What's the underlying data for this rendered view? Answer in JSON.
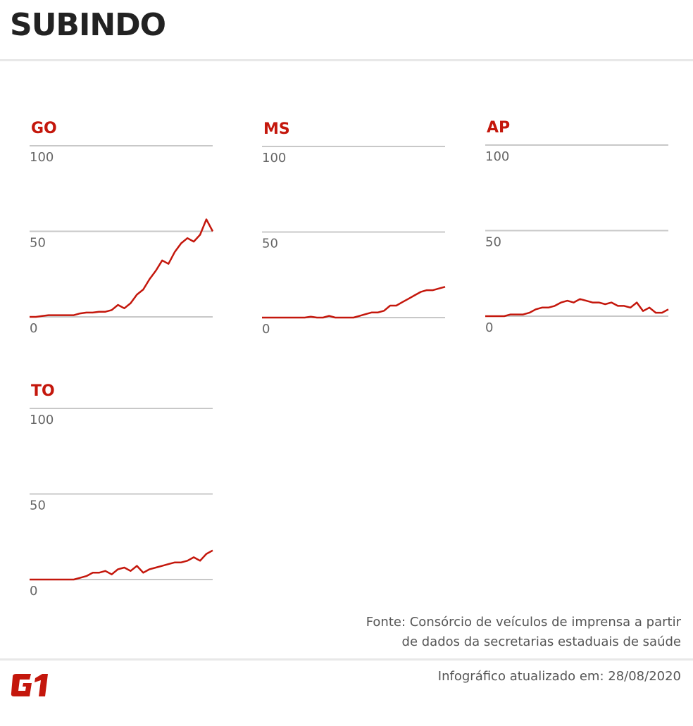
{
  "header": {
    "title": "SUBINDO"
  },
  "colors": {
    "line": "#c4170c",
    "grid": "#c8c8c8",
    "title": "#c4170c"
  },
  "chart_data": [
    {
      "type": "line",
      "title": "GO",
      "ylim": [
        0,
        100
      ],
      "yticks": [
        "100",
        "50",
        "0"
      ],
      "grid": true,
      "values": [
        0,
        0,
        0.5,
        1,
        1,
        1,
        1,
        1,
        2,
        2.5,
        2.5,
        3,
        3,
        4,
        7,
        5,
        8,
        13,
        16,
        22,
        27,
        33,
        31,
        38,
        43,
        46,
        44,
        48,
        57,
        50
      ]
    },
    {
      "type": "line",
      "title": "MS",
      "ylim": [
        0,
        100
      ],
      "yticks": [
        "100",
        "50",
        "0"
      ],
      "grid": true,
      "values": [
        0,
        0,
        0,
        0,
        0,
        0,
        0,
        0,
        0.5,
        0,
        0,
        1,
        0,
        0,
        0,
        0,
        1,
        2,
        3,
        3,
        4,
        7,
        7,
        9,
        11,
        13,
        15,
        16,
        16,
        17,
        18
      ]
    },
    {
      "type": "line",
      "title": "AP",
      "ylim": [
        0,
        100
      ],
      "yticks": [
        "100",
        "50",
        "0"
      ],
      "grid": true,
      "values": [
        0,
        0,
        0,
        0,
        1,
        1,
        1,
        2,
        4,
        5,
        5,
        6,
        8,
        9,
        8,
        10,
        9,
        8,
        8,
        7,
        8,
        6,
        6,
        5,
        8,
        3,
        5,
        2,
        2,
        4
      ]
    },
    {
      "type": "line",
      "title": "TO",
      "ylim": [
        0,
        100
      ],
      "yticks": [
        "100",
        "50",
        "0"
      ],
      "grid": true,
      "values": [
        0,
        0,
        0,
        0,
        0,
        0,
        0,
        0,
        1,
        2,
        4,
        4,
        5,
        3,
        6,
        7,
        5,
        8,
        4,
        6,
        7,
        8,
        9,
        10,
        10,
        11,
        13,
        11,
        15,
        17
      ]
    }
  ],
  "footer": {
    "source_line1": "Fonte: Consórcio de veículos de imprensa a partir",
    "source_line2": "de dados da secretarias estaduais de saúde",
    "updated": "Infográfico atualizado em: 28/08/2020",
    "logo": "G1"
  }
}
